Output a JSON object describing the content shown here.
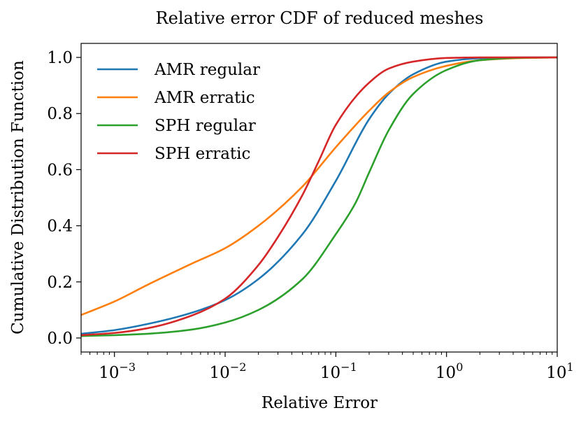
{
  "chart_data": {
    "type": "line",
    "title": "Relative error CDF of reduced meshes",
    "xlabel": "Relative Error",
    "ylabel": "Cumulative Distribution Function",
    "xscale": "log",
    "xlim": [
      0.0005,
      10
    ],
    "ylim": [
      -0.05,
      1.05
    ],
    "xticks": [
      {
        "value": 0.001,
        "base": "10",
        "exp": "−3"
      },
      {
        "value": 0.01,
        "base": "10",
        "exp": "−2"
      },
      {
        "value": 0.1,
        "base": "10",
        "exp": "−1"
      },
      {
        "value": 1,
        "base": "10",
        "exp": "0"
      },
      {
        "value": 10,
        "base": "10",
        "exp": "1"
      }
    ],
    "yticks": [
      {
        "value": 0.0,
        "label": "0.0"
      },
      {
        "value": 0.2,
        "label": "0.2"
      },
      {
        "value": 0.4,
        "label": "0.4"
      },
      {
        "value": 0.6,
        "label": "0.6"
      },
      {
        "value": 0.8,
        "label": "0.8"
      },
      {
        "value": 1.0,
        "label": "1.0"
      }
    ],
    "legend_position": "top-left",
    "grid": false,
    "series": [
      {
        "name": "AMR regular",
        "color": "#1f77b4",
        "x": [
          0.0005,
          0.001,
          0.002,
          0.005,
          0.01,
          0.02,
          0.05,
          0.1,
          0.2,
          0.3,
          0.5,
          1,
          2,
          5,
          10
        ],
        "y": [
          0.015,
          0.028,
          0.05,
          0.09,
          0.135,
          0.21,
          0.37,
          0.56,
          0.78,
          0.87,
          0.94,
          0.985,
          0.997,
          1.0,
          1.0
        ]
      },
      {
        "name": "AMR erratic",
        "color": "#ff7f0e",
        "x": [
          0.0005,
          0.001,
          0.002,
          0.005,
          0.01,
          0.02,
          0.05,
          0.1,
          0.2,
          0.3,
          0.5,
          1,
          2,
          5,
          10
        ],
        "y": [
          0.082,
          0.13,
          0.19,
          0.265,
          0.32,
          0.4,
          0.54,
          0.68,
          0.81,
          0.875,
          0.93,
          0.97,
          0.99,
          0.998,
          1.0
        ]
      },
      {
        "name": "SPH regular",
        "color": "#2ca02c",
        "x": [
          0.0005,
          0.001,
          0.002,
          0.005,
          0.01,
          0.02,
          0.05,
          0.1,
          0.15,
          0.2,
          0.3,
          0.5,
          1,
          2,
          5,
          10
        ],
        "y": [
          0.007,
          0.01,
          0.015,
          0.03,
          0.055,
          0.1,
          0.21,
          0.37,
          0.48,
          0.59,
          0.74,
          0.87,
          0.955,
          0.99,
          0.999,
          1.0
        ]
      },
      {
        "name": "SPH erratic",
        "color": "#d62728",
        "x": [
          0.0005,
          0.001,
          0.002,
          0.005,
          0.01,
          0.02,
          0.03,
          0.05,
          0.07,
          0.1,
          0.2,
          0.3,
          0.5,
          1,
          2,
          5,
          10
        ],
        "y": [
          0.01,
          0.018,
          0.035,
          0.08,
          0.14,
          0.26,
          0.36,
          0.51,
          0.63,
          0.76,
          0.91,
          0.96,
          0.985,
          0.998,
          1.0,
          1.0,
          1.0
        ]
      }
    ]
  }
}
